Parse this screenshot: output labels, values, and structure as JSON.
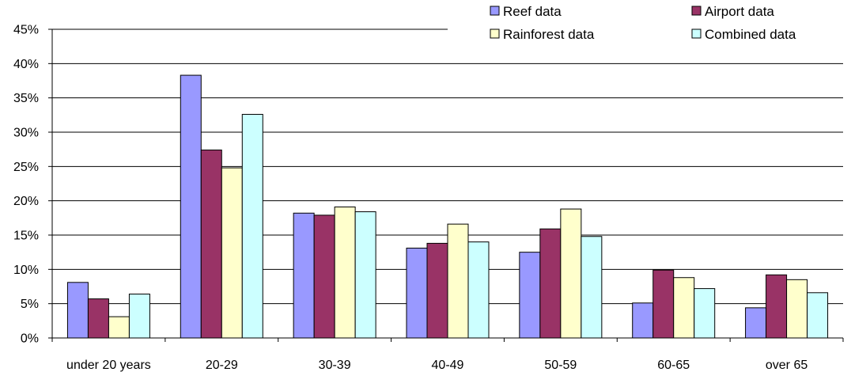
{
  "chart_data": {
    "type": "bar",
    "title": "",
    "xlabel": "",
    "ylabel": "",
    "ylim": [
      0,
      45
    ],
    "y_ticks": [
      "0%",
      "5%",
      "10%",
      "15%",
      "20%",
      "25%",
      "30%",
      "35%",
      "40%",
      "45%"
    ],
    "grid": "horizontal",
    "legend_position": "top-right",
    "categories": [
      "under 20 years",
      "20-29",
      "30-39",
      "40-49",
      "50-59",
      "60-65",
      "over 65"
    ],
    "series": [
      {
        "name": "Reef data",
        "color": "#9999ff",
        "values": [
          8.1,
          38.3,
          18.2,
          13.1,
          12.5,
          5.1,
          4.4
        ]
      },
      {
        "name": "Airport data",
        "color": "#993366",
        "values": [
          5.7,
          27.4,
          17.9,
          13.8,
          15.9,
          9.9,
          9.2
        ]
      },
      {
        "name": "Rainforest data",
        "color": "#ffffcc",
        "values": [
          3.1,
          24.8,
          19.1,
          16.6,
          18.8,
          8.8,
          8.5
        ]
      },
      {
        "name": "Combined data",
        "color": "#ccffff",
        "values": [
          6.4,
          32.6,
          18.4,
          14.0,
          14.8,
          7.2,
          6.6
        ]
      }
    ]
  }
}
